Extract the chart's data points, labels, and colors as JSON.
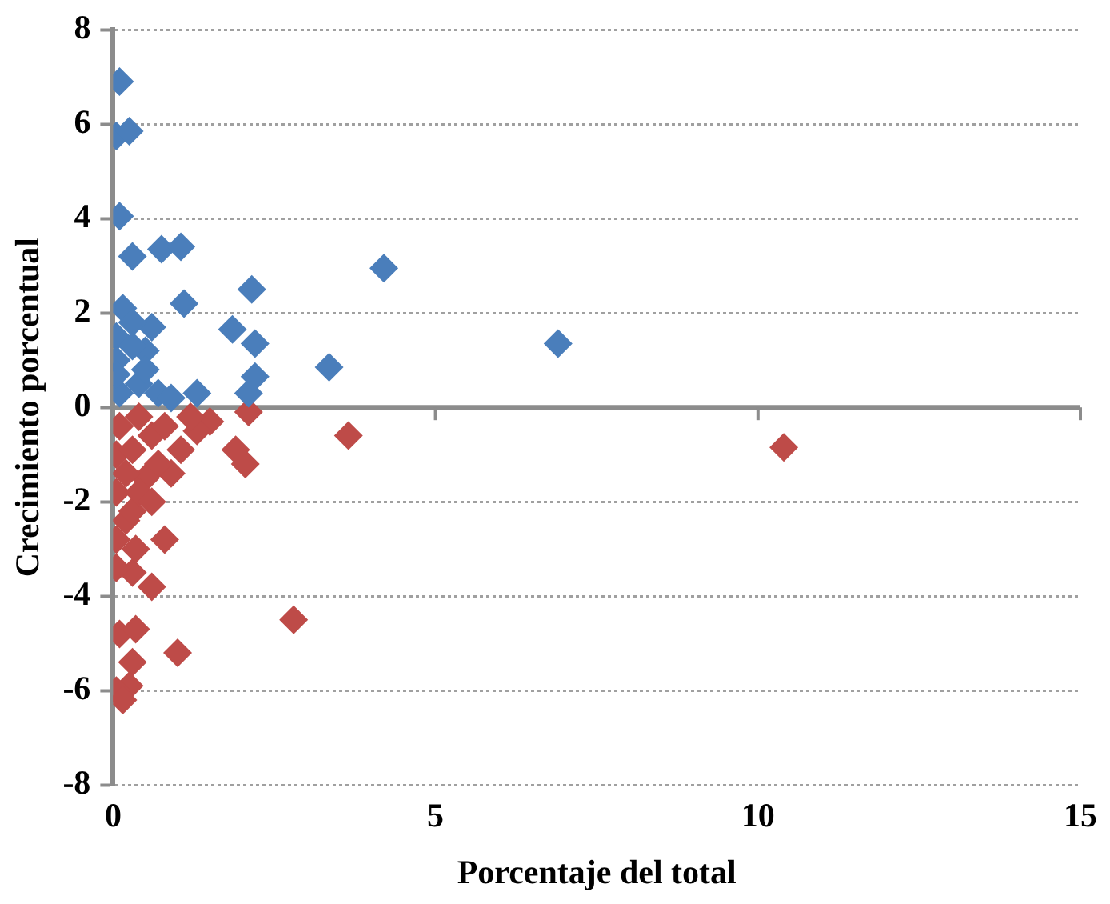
{
  "chart_data": {
    "type": "scatter",
    "xlabel": "Porcentaje del total",
    "ylabel": "Crecimiento porcentual",
    "xlim": [
      0,
      15
    ],
    "xticks": [
      0,
      5,
      10,
      15
    ],
    "ylim": [
      -8,
      8
    ],
    "yticks": [
      -8,
      -6,
      -4,
      -2,
      0,
      2,
      4,
      6,
      8
    ],
    "grid": "y",
    "legend": false,
    "marker": "diamond",
    "series": [
      {
        "color": "#4a7ebb",
        "x": [
          0.1,
          0.05,
          0.25,
          0.1,
          0.3,
          0.75,
          1.05,
          1.1,
          2.15,
          4.2,
          6.9,
          3.35,
          2.2,
          1.85,
          2.2,
          2.1,
          1.3,
          0.6,
          0.15,
          0.05,
          0.3,
          0.5,
          0.05,
          0.2,
          0.4,
          0.1,
          0.7,
          0.9,
          0.3,
          0.5,
          0.05
        ],
        "values": [
          6.9,
          5.75,
          5.85,
          4.05,
          3.2,
          3.35,
          3.4,
          2.2,
          2.5,
          2.95,
          1.35,
          0.85,
          1.35,
          1.65,
          0.65,
          0.3,
          0.3,
          1.7,
          2.1,
          1.5,
          1.8,
          1.2,
          1.0,
          null,
          0.5,
          0.3,
          0.3,
          0.2,
          1.3,
          0.8,
          0.7
        ]
      },
      {
        "color": "#be4b48",
        "x": [
          10.4,
          3.65,
          2.8,
          1.0,
          0.8,
          0.6,
          0.3,
          0.05,
          0.05,
          0.2,
          0.3,
          0.35,
          0.1,
          0.35,
          0.3,
          0.25,
          0.05,
          0.15,
          1.9,
          2.05,
          2.1,
          1.5,
          1.3,
          1.0,
          0.9,
          1.05,
          0.7,
          0.5,
          0.2,
          0.05,
          0.1,
          0.4,
          0.6,
          0.3,
          0.8,
          0.05,
          0.4,
          0.6,
          1.2
        ],
        "values": [
          -0.85,
          -0.6,
          -4.5,
          -5.2,
          -2.8,
          -3.8,
          -3.5,
          -3.4,
          -2.8,
          -2.4,
          -2.2,
          -3.0,
          -4.8,
          -4.7,
          -5.4,
          -5.9,
          -6.0,
          -6.2,
          -0.9,
          -1.2,
          -0.1,
          -0.3,
          -0.5,
          null,
          -1.4,
          -0.9,
          -1.2,
          -1.5,
          -1.4,
          -1.0,
          -0.4,
          -0.2,
          -0.6,
          -0.9,
          -0.4,
          -1.8,
          -1.8,
          -2.0,
          -0.2
        ]
      }
    ]
  }
}
